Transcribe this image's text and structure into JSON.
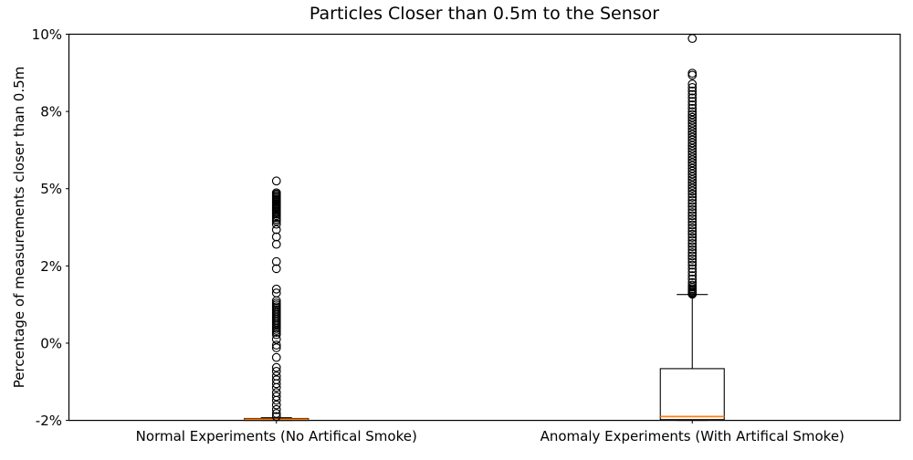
{
  "chart_data": {
    "type": "boxplot",
    "title": "Particles Closer than 0.5m to the Sensor",
    "ylabel": "Percentage of measurements closer than 0.5m",
    "xlabel": "",
    "grid": false,
    "legend": null,
    "categories": [
      "Normal Experiments (No Artifical Smoke)",
      "Anomaly Experiments (With Artifical Smoke)"
    ],
    "ytick_labels": [
      "-2%",
      "0%",
      "2%",
      "5%",
      "8%",
      "10%"
    ],
    "ytick_values": [
      -2,
      0,
      2,
      5,
      8,
      10
    ],
    "axis_note": "y ticks are evenly spaced on the axis although their values are non-linear (-2,0,2,5,8,10)",
    "colors": {
      "box": "#000000",
      "median": "#ff7f0e",
      "flier": "#000000",
      "background": "#ffffff"
    },
    "series": [
      {
        "name": "Normal Experiments (No Artifical Smoke)",
        "whisker_low": -2.0,
        "q1": -2.0,
        "median": -1.97,
        "q3": -1.95,
        "whisker_high": -1.93,
        "outliers": [
          5.3,
          4.84,
          4.79,
          4.74,
          4.69,
          4.64,
          4.59,
          4.55,
          4.5,
          4.46,
          4.41,
          4.37,
          4.32,
          4.27,
          4.22,
          4.17,
          4.12,
          4.07,
          4.01,
          3.95,
          3.88,
          3.81,
          3.74,
          3.62,
          3.41,
          3.13,
          2.84,
          2.17,
          1.93,
          1.4,
          1.3,
          1.1,
          1.04,
          0.99,
          0.94,
          0.9,
          0.86,
          0.82,
          0.78,
          0.74,
          0.7,
          0.66,
          0.62,
          0.58,
          0.54,
          0.5,
          0.46,
          0.42,
          0.38,
          0.33,
          0.28,
          0.22,
          0.1,
          -0.05,
          -0.12,
          -0.37,
          -0.63,
          -0.73,
          -0.85,
          -0.95,
          -1.05,
          -1.15,
          -1.28,
          -1.38,
          -1.48,
          -1.6,
          -1.72,
          -1.82,
          -1.9
        ]
      },
      {
        "name": "Anomaly Experiments (With Artifical Smoke)",
        "whisker_low": -2.0,
        "q1": -1.98,
        "median": -1.9,
        "q3": -0.66,
        "whisker_high": 1.26,
        "outliers": [
          9.89,
          8.99,
          8.94,
          8.71,
          8.62,
          8.53,
          8.44,
          8.35,
          8.26,
          8.17,
          8.08,
          7.99,
          7.88,
          7.77,
          7.66,
          7.55,
          7.44,
          7.33,
          7.22,
          7.11,
          7.0,
          6.89,
          6.78,
          6.67,
          6.56,
          6.45,
          6.34,
          6.23,
          6.12,
          6.01,
          5.9,
          5.79,
          5.68,
          5.57,
          5.46,
          5.35,
          5.24,
          5.13,
          5.02,
          4.91,
          4.79,
          4.67,
          4.55,
          4.43,
          4.31,
          4.19,
          4.07,
          3.95,
          3.83,
          3.71,
          3.59,
          3.47,
          3.35,
          3.23,
          3.11,
          2.99,
          2.87,
          2.75,
          2.63,
          2.51,
          2.39,
          2.27,
          2.15,
          2.03,
          1.93,
          1.84,
          1.75,
          1.66,
          1.57,
          1.5,
          1.45,
          1.41,
          1.38,
          1.35,
          1.32,
          1.3,
          1.28,
          1.27
        ]
      }
    ]
  }
}
